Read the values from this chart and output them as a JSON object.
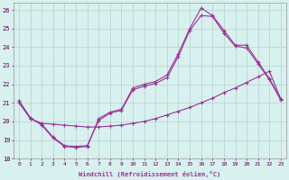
{
  "xlabel": "Windchill (Refroidissement éolien,°C)",
  "xlim": [
    -0.5,
    23.5
  ],
  "ylim": [
    18,
    26.4
  ],
  "xticks": [
    0,
    1,
    2,
    3,
    4,
    5,
    6,
    7,
    8,
    9,
    10,
    11,
    12,
    13,
    14,
    15,
    16,
    17,
    18,
    19,
    20,
    21,
    22,
    23
  ],
  "yticks": [
    18,
    19,
    20,
    21,
    22,
    23,
    24,
    25,
    26
  ],
  "bg_color": "#d8f0ee",
  "line_color": "#993399",
  "grid_color": "#b8d8d4",
  "line1_x": [
    0,
    1,
    2,
    3,
    4,
    5,
    6,
    7,
    8,
    9,
    10,
    11,
    12,
    13,
    14,
    15,
    16,
    17,
    18,
    19,
    20,
    21,
    22,
    23
  ],
  "line1_y": [
    21.1,
    20.2,
    19.8,
    19.1,
    18.65,
    18.6,
    18.65,
    20.15,
    20.5,
    20.65,
    21.8,
    22.0,
    22.15,
    22.5,
    23.65,
    25.0,
    26.1,
    25.7,
    24.9,
    24.1,
    24.1,
    23.2,
    22.3,
    21.2
  ],
  "line2_x": [
    0,
    1,
    2,
    3,
    4,
    5,
    6,
    7,
    8,
    9,
    10,
    11,
    12,
    13,
    14,
    15,
    16,
    17,
    18,
    19,
    20,
    21,
    22,
    23
  ],
  "line2_y": [
    21.1,
    20.15,
    19.85,
    19.15,
    18.7,
    18.65,
    18.7,
    20.05,
    20.45,
    20.6,
    21.7,
    21.9,
    22.05,
    22.35,
    23.5,
    24.9,
    25.7,
    25.65,
    24.75,
    24.05,
    23.95,
    23.1,
    22.25,
    21.15
  ],
  "line3_x": [
    0,
    1,
    2,
    3,
    4,
    5,
    6,
    7,
    8,
    9,
    10,
    11,
    12,
    13,
    14,
    15,
    16,
    17,
    18,
    19,
    20,
    21,
    22,
    23
  ],
  "line3_y": [
    21.0,
    20.15,
    19.9,
    19.85,
    19.8,
    19.75,
    19.7,
    19.7,
    19.75,
    19.8,
    19.9,
    20.0,
    20.15,
    20.35,
    20.55,
    20.75,
    21.0,
    21.25,
    21.55,
    21.8,
    22.1,
    22.4,
    22.7,
    21.2
  ]
}
